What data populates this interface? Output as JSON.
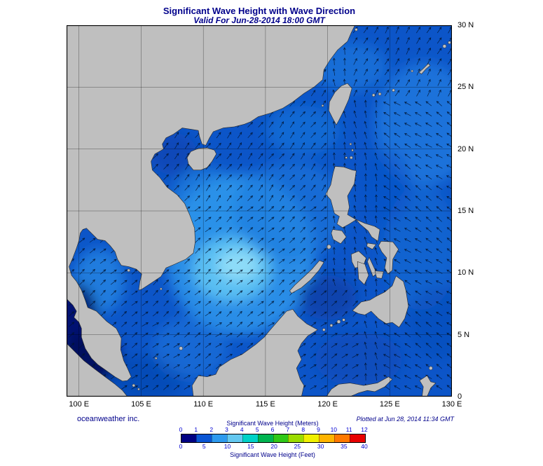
{
  "header": {
    "title": "Significant Wave Height with Wave Direction",
    "subtitle": "Valid For Jun-28-2014 18:00 GMT"
  },
  "footer": {
    "credit": "oceanweather inc.",
    "plotted": "Plotted at Jun 28, 2014 11:34 GMT"
  },
  "axes": {
    "lat": [
      {
        "label": "30 N",
        "deg": 30
      },
      {
        "label": "25 N",
        "deg": 25
      },
      {
        "label": "20 N",
        "deg": 20
      },
      {
        "label": "15 N",
        "deg": 15
      },
      {
        "label": "10 N",
        "deg": 10
      },
      {
        "label": "5 N",
        "deg": 5
      },
      {
        "label": "0",
        "deg": 0
      }
    ],
    "lon": [
      {
        "label": "100 E",
        "deg": 100
      },
      {
        "label": "105 E",
        "deg": 105
      },
      {
        "label": "110 E",
        "deg": 110
      },
      {
        "label": "115 E",
        "deg": 115
      },
      {
        "label": "120 E",
        "deg": 120
      },
      {
        "label": "125 E",
        "deg": 125
      },
      {
        "label": "130 E",
        "deg": 130
      }
    ]
  },
  "legend": {
    "meters_label": "Significant Wave Height (Meters)",
    "feet_label": "Significant Wave Height (Feet)",
    "meters_ticks": [
      0,
      1,
      2,
      3,
      4,
      5,
      6,
      7,
      8,
      9,
      10,
      11,
      12
    ],
    "feet_ticks": [
      0,
      5,
      10,
      15,
      20,
      25,
      30,
      35,
      40
    ],
    "segment_colors": [
      "#000082",
      "#0A55D4",
      "#2E9AEE",
      "#64C8F0",
      "#00D2C8",
      "#00B450",
      "#30C818",
      "#9CDC00",
      "#F0F000",
      "#FFB400",
      "#FF7800",
      "#E80000"
    ]
  },
  "colors": {
    "title_text": "#00008B",
    "tick_text": "#0000D2",
    "land": "#BFBFBF",
    "coastline": "#2A2A2A",
    "ocean_base": "#0C55C8",
    "grid": "#000000",
    "border": "#000000"
  },
  "chart_data": {
    "type": "heatmap",
    "title": "Significant Wave Height with Wave Direction",
    "valid_time": "Jun-28-2014 18:00 GMT",
    "x_axis": {
      "ticks": [
        "100 E",
        "105 E",
        "110 E",
        "115 E",
        "120 E",
        "125 E",
        "130 E"
      ]
    },
    "y_axis": {
      "ticks": [
        "0",
        "5 N",
        "10 N",
        "15 N",
        "20 N",
        "25 N",
        "30 N"
      ]
    },
    "graticule_interval_deg": 5,
    "colorbar": {
      "meters_range": [
        0,
        12
      ],
      "feet_range": [
        0,
        40
      ],
      "meters_ticks": [
        0,
        1,
        2,
        3,
        4,
        5,
        6,
        7,
        8,
        9,
        10,
        11,
        12
      ],
      "feet_ticks": [
        0,
        5,
        10,
        15,
        20,
        25,
        30,
        35,
        40
      ]
    },
    "overlay": "wave direction arrows",
    "estimated_values_m": [
      {
        "region": "central South China Sea near 112E 10N",
        "value": 2.5
      },
      {
        "region": "general South China Sea",
        "value": 1.5
      },
      {
        "region": "Gulf of Thailand",
        "value": 1.5
      },
      {
        "region": "Philippine Sea / Pacific",
        "value": 1.0
      },
      {
        "region": "Sulu and Celebes Seas",
        "value": 0.8
      },
      {
        "region": "Strait of Malacca / Andaman corner",
        "value": 0.3
      }
    ],
    "predominant_wave_direction": {
      "south_china_sea": "toward NE (southwest monsoon)",
      "pacific_east_of_philippines": "toward NW/W"
    }
  }
}
